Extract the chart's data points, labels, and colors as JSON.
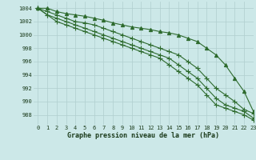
{
  "title": "Graphe pression niveau de la mer (hPa)",
  "background_color": "#cce8e8",
  "plot_bg_color": "#cce8e8",
  "grid_color": "#b0cece",
  "line_color": "#2d6a2d",
  "xlim": [
    -0.5,
    23
  ],
  "ylim": [
    986.5,
    1005
  ],
  "yticks": [
    988,
    990,
    992,
    994,
    996,
    998,
    1000,
    1002,
    1004
  ],
  "xticks": [
    0,
    1,
    2,
    3,
    4,
    5,
    6,
    7,
    8,
    9,
    10,
    11,
    12,
    13,
    14,
    15,
    16,
    17,
    18,
    19,
    20,
    21,
    22,
    23
  ],
  "series": [
    [
      1004,
      1004,
      1003.5,
      1003.2,
      1003,
      1002.8,
      1002.5,
      1002.2,
      1001.8,
      1001.5,
      1001.2,
      1001,
      1000.8,
      1000.5,
      1000.3,
      1000,
      999.5,
      999,
      998,
      997,
      995.5,
      993.5,
      991.5,
      988.5
    ],
    [
      1004,
      1003.5,
      1003,
      1002.5,
      1002,
      1001.8,
      1001.5,
      1001,
      1000.5,
      1000,
      999.5,
      999,
      998.5,
      998,
      997.5,
      997,
      996,
      995,
      993.5,
      992,
      991,
      990,
      988.8,
      988.2
    ],
    [
      1004,
      1003,
      1002.5,
      1002,
      1001.5,
      1001,
      1000.5,
      1000,
      999.5,
      999,
      998.5,
      998,
      997.5,
      997,
      996.5,
      995.5,
      994.5,
      993.5,
      992,
      990.5,
      989.5,
      989,
      988.5,
      987.5
    ],
    [
      1004,
      1003,
      1002,
      1001.5,
      1001,
      1000.5,
      1000,
      999.5,
      999,
      998.5,
      998,
      997.5,
      997,
      996.5,
      995.5,
      994.5,
      993.5,
      992.5,
      991,
      989.5,
      989,
      988.5,
      988,
      987.2
    ]
  ],
  "marker_styles": [
    "^",
    "+",
    "+",
    "+"
  ],
  "marker_sizes": [
    3,
    4,
    4,
    4
  ],
  "marker_every": [
    1,
    1,
    1,
    1
  ],
  "linewidths": [
    0.8,
    0.8,
    0.8,
    0.8
  ],
  "title_fontsize": 6.0,
  "tick_fontsize": 5.0
}
